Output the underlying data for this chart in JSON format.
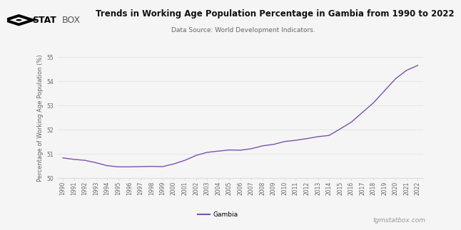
{
  "title": "Trends in Working Age Population Percentage in Gambia from 1990 to 2022",
  "subtitle": "Data Source: World Development Indicators.",
  "ylabel": "Percentage of Working Age Population (%)",
  "line_color": "#7B52AB",
  "background_color": "#f5f5f5",
  "grid_color": "#dddddd",
  "legend_label": "Gambia",
  "watermark": "tgmstatbox.com",
  "ylim": [
    50.0,
    55.0
  ],
  "yticks": [
    50,
    51,
    52,
    53,
    54,
    55
  ],
  "years": [
    1990,
    1991,
    1992,
    1993,
    1994,
    1995,
    1996,
    1997,
    1998,
    1999,
    2000,
    2001,
    2002,
    2003,
    2004,
    2005,
    2006,
    2007,
    2008,
    2009,
    2010,
    2011,
    2012,
    2013,
    2014,
    2015,
    2016,
    2017,
    2018,
    2019,
    2020,
    2021,
    2022
  ],
  "values": [
    50.82,
    50.76,
    50.72,
    50.62,
    50.5,
    50.45,
    50.45,
    50.46,
    50.47,
    50.46,
    50.57,
    50.72,
    50.92,
    51.05,
    51.1,
    51.15,
    51.14,
    51.2,
    51.32,
    51.38,
    51.5,
    51.55,
    51.62,
    51.7,
    51.75,
    52.02,
    52.3,
    52.7,
    53.1,
    53.6,
    54.1,
    54.45,
    54.65
  ],
  "logo_text": "STATBOX",
  "logo_prefix": "◆",
  "title_fontsize": 8.5,
  "subtitle_fontsize": 6.5,
  "tick_fontsize": 5.5,
  "ylabel_fontsize": 6.0,
  "legend_fontsize": 6.5,
  "watermark_fontsize": 6.5
}
